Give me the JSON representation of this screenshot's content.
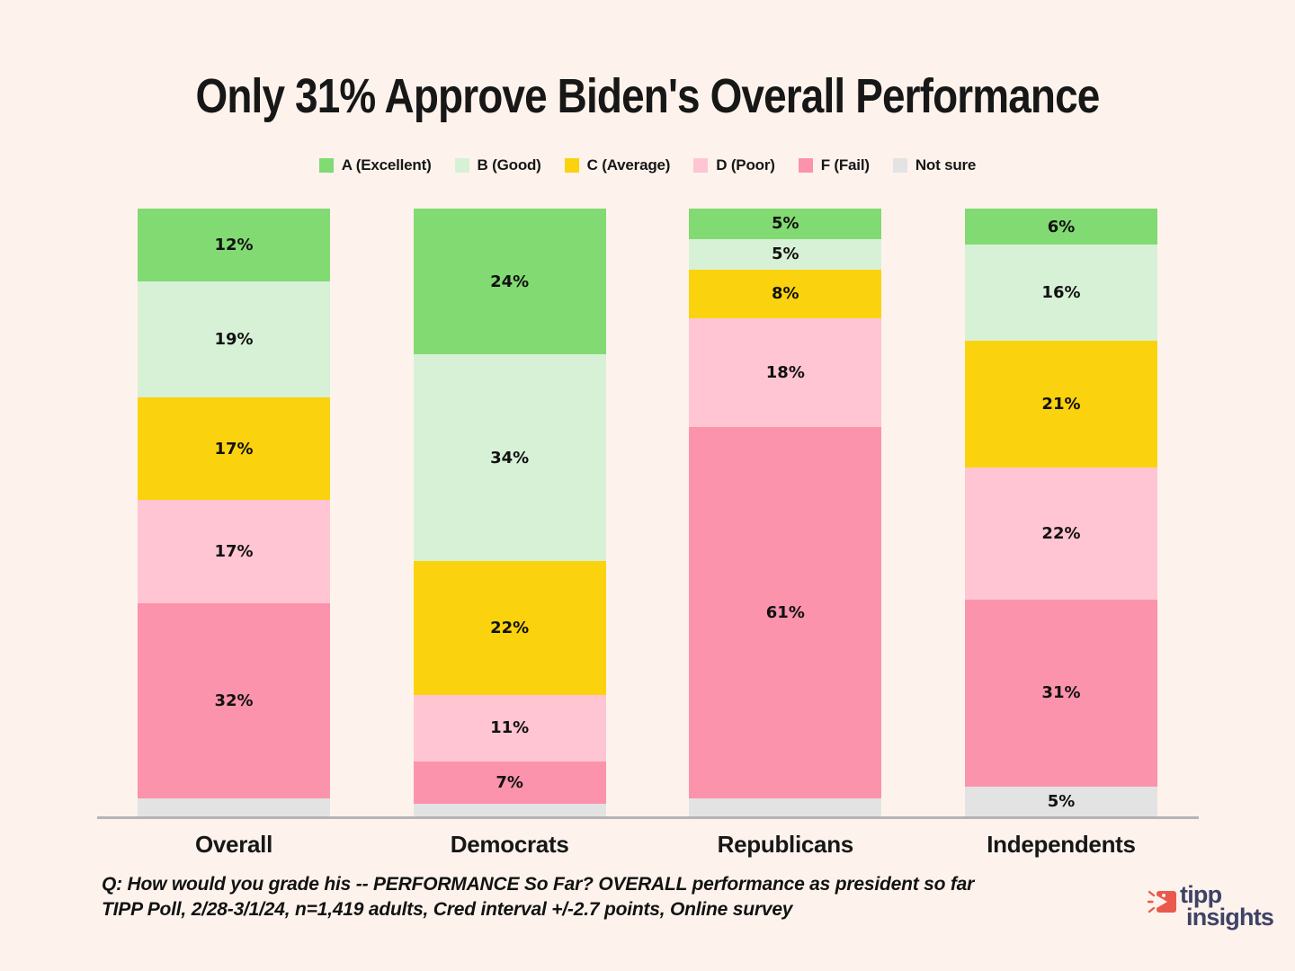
{
  "title": "Only 31% Approve Biden's Overall Performance",
  "chart_data": {
    "type": "bar",
    "stacked": true,
    "orientation": "vertical",
    "title": "Only 31% Approve Biden's Overall Performance",
    "categories": [
      "Overall",
      "Democrats",
      "Republicans",
      "Independents"
    ],
    "series": [
      {
        "name": "A (Excellent)",
        "color": "#82DA73",
        "values": [
          12,
          24,
          5,
          6
        ]
      },
      {
        "name": "B (Good)",
        "color": "#D7F1D6",
        "values": [
          19,
          34,
          5,
          16
        ]
      },
      {
        "name": "C (Average)",
        "color": "#FBD20E",
        "values": [
          17,
          22,
          8,
          21
        ]
      },
      {
        "name": "D (Poor)",
        "color": "#FFC5D2",
        "values": [
          17,
          11,
          18,
          22
        ]
      },
      {
        "name": "F (Fail)",
        "color": "#FC93AC",
        "values": [
          32,
          7,
          61,
          31
        ]
      },
      {
        "name": "Not sure",
        "color": "#E3E3E3",
        "values": [
          3,
          2,
          3,
          5
        ]
      }
    ],
    "label_format": "{v}%",
    "label_min_to_show": 5,
    "ylim": [
      0,
      100
    ],
    "grid": false,
    "legend_position": "top",
    "xlabel": "",
    "ylabel": ""
  },
  "footer": {
    "line1": "Q:  How would you grade his -- PERFORMANCE So Far? OVERALL performance as president so far",
    "line2": "TIPP Poll, 2/28-3/1/24, n=1,419 adults, Cred interval +/-2.7 points, Online survey"
  },
  "logo": {
    "word1": "tipp",
    "word2": "insights",
    "icon_color": "#E95A4D",
    "text_color": "#3E4366"
  },
  "theme": {
    "background": "#FDF3EC",
    "text": "#171717",
    "axis_line": "#B4B4B8"
  }
}
